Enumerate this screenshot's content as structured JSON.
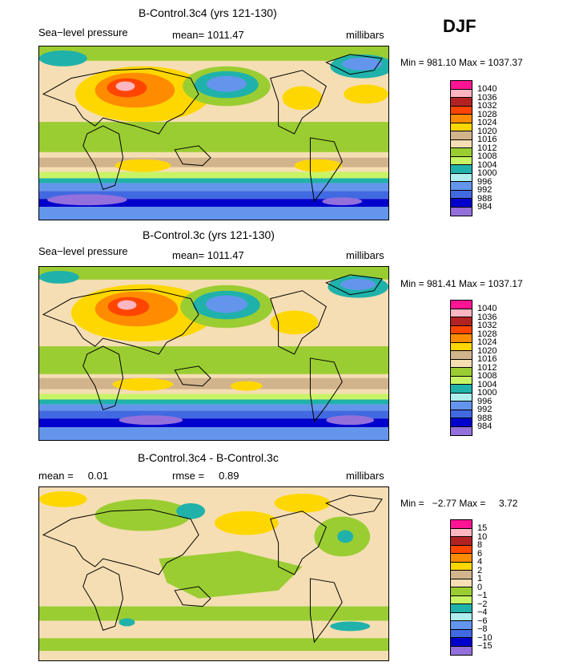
{
  "season": "DJF",
  "panels": [
    {
      "title": "B-Control.3c4 (yrs 121-130)",
      "left_label": "Sea−level pressure",
      "center_label": "mean= 1011.47",
      "units": "millibars",
      "minmax": "Min = 981.10 Max = 1037.37",
      "colorbar": {
        "labels": [
          "1040",
          "1036",
          "1032",
          "1028",
          "1024",
          "1020",
          "1016",
          "1012",
          "1008",
          "1004",
          "1000",
          "996",
          "992",
          "988",
          "984"
        ],
        "colors": [
          "#ff1493",
          "#ffb6c1",
          "#b22222",
          "#ff4500",
          "#ff8c00",
          "#ffd700",
          "#d2b48c",
          "#f5deb3",
          "#9acd32",
          "#c7f464",
          "#20b2aa",
          "#afeeee",
          "#6495ed",
          "#4169e1",
          "#0000cd",
          "#9370db"
        ]
      }
    },
    {
      "title": "B-Control.3c (yrs 121-130)",
      "left_label": "Sea−level pressure",
      "center_label": "mean= 1011.47",
      "units": "millibars",
      "minmax": "Min = 981.41 Max = 1037.17",
      "colorbar": {
        "labels": [
          "1040",
          "1036",
          "1032",
          "1028",
          "1024",
          "1020",
          "1016",
          "1012",
          "1008",
          "1004",
          "1000",
          "996",
          "992",
          "988",
          "984"
        ],
        "colors": [
          "#ff1493",
          "#ffb6c1",
          "#b22222",
          "#ff4500",
          "#ff8c00",
          "#ffd700",
          "#d2b48c",
          "#f5deb3",
          "#9acd32",
          "#c7f464",
          "#20b2aa",
          "#afeeee",
          "#6495ed",
          "#4169e1",
          "#0000cd",
          "#9370db"
        ]
      }
    },
    {
      "title": "B-Control.3c4 - B-Control.3c",
      "left_label": "mean =     0.01",
      "center_label": "rmse =     0.89",
      "units": "millibars",
      "minmax": "Min =   −2.77 Max =     3.72",
      "colorbar": {
        "labels": [
          "15",
          "10",
          "8",
          "6",
          "4",
          "2",
          "1",
          "0",
          "−1",
          "−2",
          "−4",
          "−6",
          "−8",
          "−10",
          "−15"
        ],
        "colors": [
          "#ff1493",
          "#ffb6c1",
          "#b22222",
          "#ff4500",
          "#ff8c00",
          "#ffd700",
          "#d2b48c",
          "#f5deb3",
          "#9acd32",
          "#c7f464",
          "#20b2aa",
          "#afeeee",
          "#6495ed",
          "#4169e1",
          "#0000cd",
          "#9370db"
        ]
      }
    }
  ]
}
